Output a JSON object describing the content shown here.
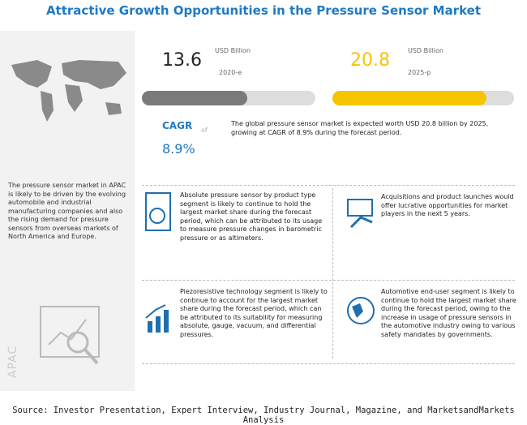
{
  "header": {
    "title": "Attractive Growth Opportunities in the Pressure Sensor Market"
  },
  "left_panel": {
    "text": "The pressure sensor market in APAC is likely to be driven by the evolving automobile and industrial manufacturing companies and also the rising demand for pressure sensors from overseas markets of North America and Europe.",
    "region": "APAC"
  },
  "stats": [
    {
      "value": 13.6,
      "unit": "USD Billion",
      "year": "2020-e"
    },
    {
      "value": 20.8,
      "unit": "USD Billion",
      "year": "2025-p"
    }
  ],
  "cagr": {
    "label": "CAGR",
    "value": "8.9%",
    "of": "of",
    "text": "The global pressure sensor market is expected worth USD 20.8 billion by 2025, growing at CAGR of 8.9% during the forecast period."
  },
  "insights": [
    "Absolute pressure sensor by product type segment is likely to continue to hold the largest market share during the forecast period, which can be attributed to its usage to measure pressure changes in barometric pressure or as altimeters.",
    "Acquisitions and product launches would offer lucrative opportunities for market players in the next 5 years.",
    "Piezoresistive technology segment is likely to continue to account for the largest market share during the forecast period, which can be attributed to its suitability for measuring absolute, gauge, vacuum, and differential pressures.",
    "Automotive end-user segment is likely to continue to hold the largest market share during the forecast period, owing to the increase in usage of pressure sensors in the automotive industry owing to various safety mandates by governments."
  ],
  "source": "Source: Investor Presentation, Expert Interview, Industry Journal, Magazine, and MarketsandMarkets Analysis"
}
